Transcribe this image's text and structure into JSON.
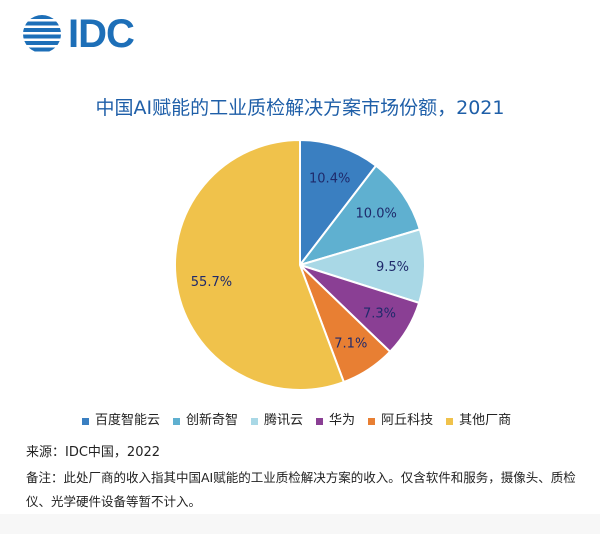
{
  "logo": {
    "text": "IDC",
    "color": "#1d6fb8"
  },
  "chart_data": {
    "type": "pie",
    "title": "中国AI赋能的工业质检解决方案市场份额，2021",
    "categories": [
      "百度智能云",
      "创新奇智",
      "腾讯云",
      "华为",
      "阿丘科技",
      "其他厂商"
    ],
    "values": [
      10.4,
      10.0,
      9.5,
      7.3,
      7.1,
      55.7
    ],
    "labels": [
      "10.4%",
      "10.0%",
      "9.5%",
      "7.3%",
      "7.1%",
      "55.7%"
    ],
    "colors": [
      "#3a7fc1",
      "#5fb0d0",
      "#a9d8e6",
      "#8a3f94",
      "#e87f33",
      "#f0c24b"
    ],
    "label_color": "#1f2a6b",
    "start": "12 o'clock, clockwise",
    "legend_position": "bottom"
  },
  "footer": {
    "source": "来源：IDC中国，2022",
    "note": "备注：此处厂商的收入指其中国AI赋能的工业质检解决方案的收入。仅含软件和服务，摄像头、质检仪、光学硬件设备等暂不计入。"
  },
  "colors": {
    "title": "#1f5fa8",
    "text": "#222222"
  }
}
